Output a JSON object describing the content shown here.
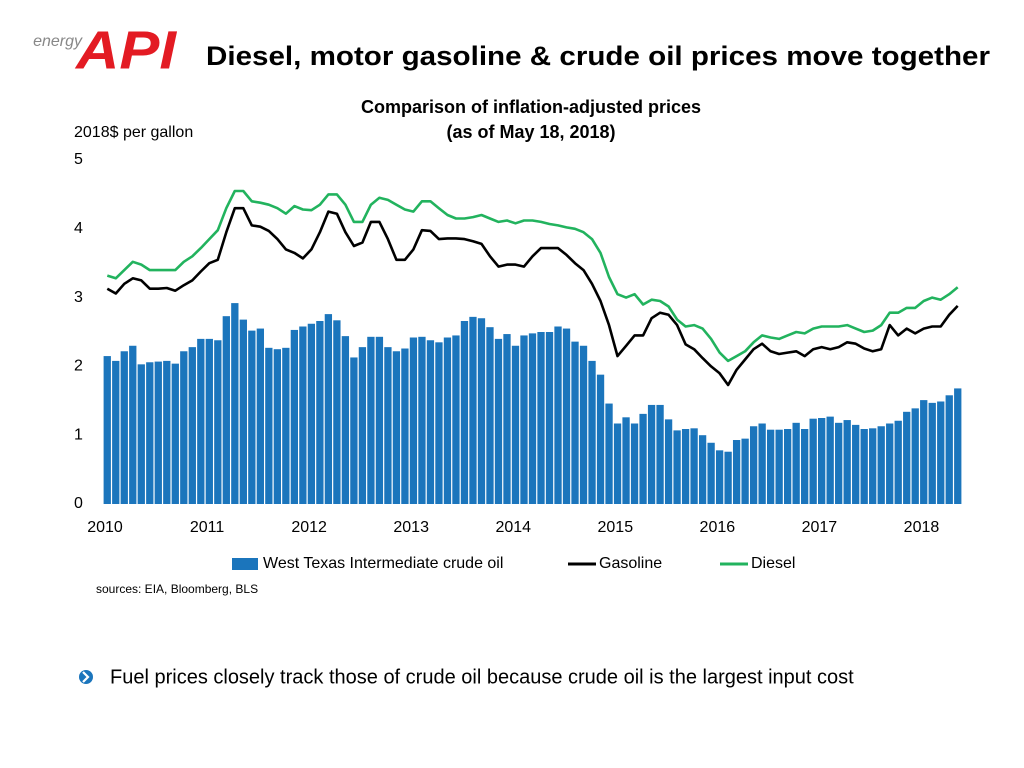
{
  "header": {
    "logo_tagline": "energy",
    "logo": "API",
    "title": "Diesel, motor gasoline & crude oil prices move together"
  },
  "chart_data": {
    "type": "combo",
    "title": "Comparison of inflation-adjusted prices",
    "subtitle": "(as of May 18, 2018)",
    "y_label": "2018$ per gallon",
    "ylim": [
      0,
      5
    ],
    "yticks": [
      0,
      1,
      2,
      3,
      4,
      5
    ],
    "grid": false,
    "legend": "bottom",
    "categories": [
      "2010",
      null,
      null,
      null,
      null,
      null,
      null,
      null,
      null,
      null,
      null,
      null,
      "2011",
      null,
      null,
      null,
      null,
      null,
      null,
      null,
      null,
      null,
      null,
      null,
      "2012",
      null,
      null,
      null,
      null,
      null,
      null,
      null,
      null,
      null,
      null,
      null,
      "2013",
      null,
      null,
      null,
      null,
      null,
      null,
      null,
      null,
      null,
      null,
      null,
      "2014",
      null,
      null,
      null,
      null,
      null,
      null,
      null,
      null,
      null,
      null,
      null,
      "2015",
      null,
      null,
      null,
      null,
      null,
      null,
      null,
      null,
      null,
      null,
      null,
      "2016",
      null,
      null,
      null,
      null,
      null,
      null,
      null,
      null,
      null,
      null,
      null,
      "2017",
      null,
      null,
      null,
      null,
      null,
      null,
      null,
      null,
      null,
      null,
      null,
      "2018",
      null,
      null,
      null,
      null
    ],
    "series": [
      {
        "name": "West Texas Intermediate crude oil",
        "type": "bar",
        "color": "#1b75bc",
        "values": [
          2.15,
          2.08,
          2.22,
          2.3,
          2.03,
          2.06,
          2.07,
          2.08,
          2.04,
          2.22,
          2.28,
          2.4,
          2.4,
          2.38,
          2.73,
          2.92,
          2.68,
          2.52,
          2.55,
          2.27,
          2.25,
          2.27,
          2.53,
          2.58,
          2.62,
          2.66,
          2.76,
          2.67,
          2.44,
          2.13,
          2.28,
          2.43,
          2.43,
          2.28,
          2.22,
          2.26,
          2.42,
          2.43,
          2.38,
          2.35,
          2.42,
          2.45,
          2.66,
          2.72,
          2.7,
          2.57,
          2.4,
          2.47,
          2.3,
          2.45,
          2.48,
          2.5,
          2.5,
          2.58,
          2.55,
          2.36,
          2.3,
          2.08,
          1.88,
          1.46,
          1.17,
          1.26,
          1.17,
          1.31,
          1.44,
          1.44,
          1.23,
          1.07,
          1.09,
          1.1,
          1.0,
          0.89,
          0.78,
          0.76,
          0.93,
          0.95,
          1.13,
          1.17,
          1.08,
          1.08,
          1.09,
          1.18,
          1.09,
          1.24,
          1.25,
          1.27,
          1.18,
          1.22,
          1.15,
          1.09,
          1.1,
          1.13,
          1.17,
          1.21,
          1.34,
          1.39,
          1.51,
          1.47,
          1.49,
          1.58,
          1.68
        ]
      },
      {
        "name": "Gasoline",
        "type": "line",
        "color": "#000000",
        "values": [
          3.13,
          3.06,
          3.2,
          3.28,
          3.25,
          3.13,
          3.13,
          3.14,
          3.1,
          3.18,
          3.25,
          3.38,
          3.5,
          3.55,
          3.95,
          4.3,
          4.3,
          4.05,
          4.03,
          3.97,
          3.85,
          3.7,
          3.65,
          3.57,
          3.7,
          3.95,
          4.25,
          4.22,
          3.95,
          3.75,
          3.8,
          4.1,
          4.1,
          3.85,
          3.55,
          3.55,
          3.7,
          3.98,
          3.97,
          3.85,
          3.86,
          3.86,
          3.85,
          3.82,
          3.78,
          3.6,
          3.45,
          3.48,
          3.48,
          3.45,
          3.6,
          3.72,
          3.72,
          3.72,
          3.62,
          3.5,
          3.4,
          3.2,
          2.95,
          2.6,
          2.15,
          2.3,
          2.45,
          2.45,
          2.7,
          2.78,
          2.75,
          2.6,
          2.32,
          2.25,
          2.12,
          2.0,
          1.9,
          1.73,
          1.95,
          2.1,
          2.25,
          2.33,
          2.22,
          2.18,
          2.2,
          2.22,
          2.15,
          2.25,
          2.28,
          2.25,
          2.28,
          2.35,
          2.33,
          2.26,
          2.22,
          2.25,
          2.6,
          2.45,
          2.55,
          2.48,
          2.55,
          2.58,
          2.58,
          2.75,
          2.88
        ]
      },
      {
        "name": "Diesel",
        "type": "line",
        "color": "#22b35e",
        "values": [
          3.32,
          3.28,
          3.4,
          3.52,
          3.48,
          3.4,
          3.4,
          3.4,
          3.4,
          3.52,
          3.6,
          3.72,
          3.85,
          3.98,
          4.3,
          4.55,
          4.55,
          4.4,
          4.38,
          4.35,
          4.3,
          4.22,
          4.33,
          4.28,
          4.27,
          4.35,
          4.5,
          4.5,
          4.35,
          4.1,
          4.1,
          4.35,
          4.45,
          4.42,
          4.35,
          4.28,
          4.25,
          4.4,
          4.4,
          4.3,
          4.2,
          4.15,
          4.15,
          4.17,
          4.2,
          4.15,
          4.1,
          4.12,
          4.08,
          4.12,
          4.12,
          4.1,
          4.07,
          4.05,
          4.02,
          4.0,
          3.95,
          3.85,
          3.65,
          3.3,
          3.05,
          3.0,
          3.05,
          2.9,
          2.97,
          2.95,
          2.87,
          2.68,
          2.58,
          2.6,
          2.55,
          2.4,
          2.2,
          2.08,
          2.15,
          2.22,
          2.35,
          2.45,
          2.42,
          2.4,
          2.45,
          2.5,
          2.48,
          2.55,
          2.58,
          2.58,
          2.58,
          2.6,
          2.55,
          2.5,
          2.52,
          2.6,
          2.78,
          2.78,
          2.85,
          2.85,
          2.95,
          3.0,
          2.97,
          3.05,
          3.15
        ]
      }
    ],
    "source_note": "sources:  EIA, Bloomberg, BLS"
  },
  "bullet": "Fuel prices closely track those of crude oil because crude oil is the largest input cost"
}
